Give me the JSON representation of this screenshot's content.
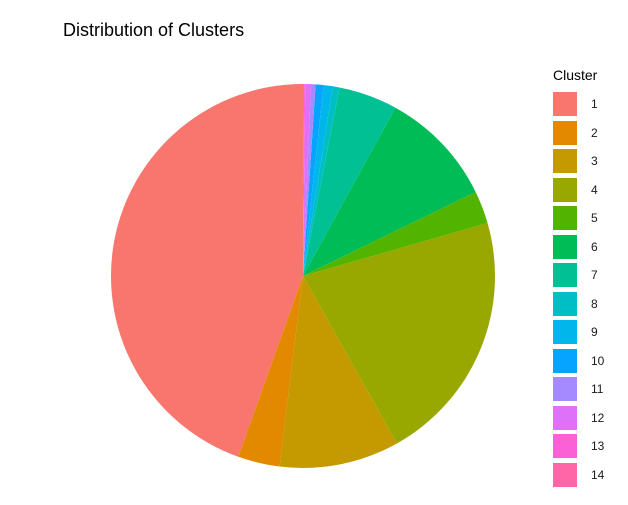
{
  "chart_data": {
    "type": "pie",
    "title": "Distribution of Clusters",
    "legend_title": "Cluster",
    "legend_position": "right",
    "grid": false,
    "categories": [
      "1",
      "2",
      "3",
      "4",
      "5",
      "6",
      "7",
      "8",
      "9",
      "10",
      "11",
      "12",
      "13",
      "14"
    ],
    "values": [
      46.8,
      3.7,
      10.6,
      22.4,
      2.9,
      10.3,
      5.2,
      0.6,
      0.8,
      0.7,
      0.4,
      0.5,
      0.1,
      0.1
    ],
    "colors": [
      "#F8766D",
      "#E38900",
      "#C49A00",
      "#99A800",
      "#53B400",
      "#00BC56",
      "#00C094",
      "#00BFC4",
      "#00B6EB",
      "#06A4FF",
      "#A58AFF",
      "#DF70F8",
      "#FB61D7",
      "#FF66A8"
    ],
    "direction": "counterclockwise",
    "start": "12 o'clock"
  }
}
